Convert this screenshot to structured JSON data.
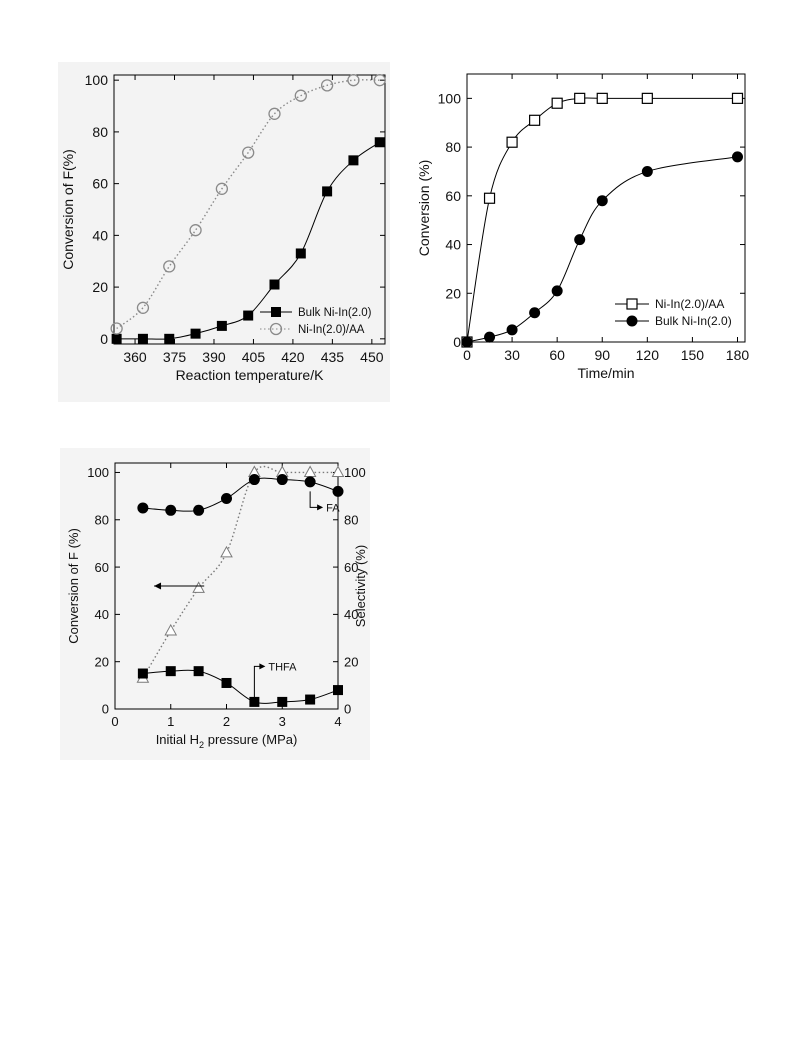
{
  "chart_data": [
    {
      "id": "panel1",
      "type": "line",
      "xlabel": "Reaction temperature/K",
      "ylabel": "Conversion of F(%)",
      "xlim": [
        352,
        455
      ],
      "ylim": [
        -2,
        102
      ],
      "xticks": [
        360,
        375,
        390,
        405,
        420,
        435,
        450
      ],
      "yticks": [
        0,
        20,
        40,
        60,
        80,
        100
      ],
      "legend_position": "bottom-right",
      "series": [
        {
          "name": "Bulk Ni-In(2.0)",
          "marker": "filled-square",
          "line": "solid",
          "x": [
            353,
            363,
            373,
            383,
            393,
            403,
            413,
            423,
            433,
            443,
            453
          ],
          "y": [
            0,
            0,
            0,
            2,
            5,
            9,
            21,
            33,
            57,
            69,
            76
          ]
        },
        {
          "name": "Ni-In(2.0)/AA",
          "marker": "open-circle",
          "line": "dotted",
          "color": "#8a8a8a",
          "x": [
            353,
            363,
            373,
            383,
            393,
            403,
            413,
            423,
            433,
            443,
            453
          ],
          "y": [
            4,
            12,
            28,
            42,
            58,
            72,
            87,
            94,
            98,
            100,
            100
          ]
        }
      ]
    },
    {
      "id": "panel2",
      "type": "line",
      "xlabel": "Time/min",
      "ylabel": "Conversion (%)",
      "xlim": [
        0,
        185
      ],
      "ylim": [
        0,
        110
      ],
      "xticks": [
        0,
        30,
        60,
        90,
        120,
        150,
        180
      ],
      "yticks": [
        0,
        20,
        40,
        60,
        80,
        100
      ],
      "legend_position": "bottom-right",
      "series": [
        {
          "name": "Ni-In(2.0)/AA",
          "marker": "open-square",
          "line": "solid",
          "x": [
            0,
            15,
            30,
            45,
            60,
            75,
            90,
            120,
            180
          ],
          "y": [
            0,
            59,
            82,
            91,
            98,
            100,
            100,
            100,
            100
          ]
        },
        {
          "name": "Bulk Ni-In(2.0)",
          "marker": "filled-circle",
          "line": "solid",
          "x": [
            0,
            15,
            30,
            45,
            60,
            75,
            90,
            120,
            180
          ],
          "y": [
            0,
            2,
            5,
            12,
            21,
            42,
            58,
            70,
            76
          ]
        }
      ]
    },
    {
      "id": "panel3",
      "type": "line",
      "xlabel": "Initial H2 pressure (MPa)",
      "xlabel_parts": [
        "Initial H",
        "2",
        " pressure (MPa)"
      ],
      "ylabel": "Conversion of F (%)",
      "ylabel_right": "Selectivity (%)",
      "xlim": [
        0,
        4
      ],
      "ylim": [
        0,
        104
      ],
      "ylim_right": [
        0,
        104
      ],
      "xticks": [
        0,
        1,
        2,
        3,
        4
      ],
      "yticks": [
        0,
        20,
        40,
        60,
        80,
        100
      ],
      "yticks_right": [
        0,
        20,
        40,
        60,
        80,
        100
      ],
      "series": [
        {
          "name": "",
          "marker": "open-triangle",
          "line": "dotted",
          "color": "#7a7a7a",
          "axis": "left",
          "x": [
            0.5,
            1,
            1.5,
            2,
            2.5,
            3,
            3.5,
            4
          ],
          "y": [
            13,
            33,
            51,
            66,
            100,
            100,
            100,
            100
          ]
        },
        {
          "name": "",
          "marker": "filled-circle",
          "line": "solid",
          "axis": "right",
          "x": [
            0.5,
            1,
            1.5,
            2,
            2.5,
            3,
            3.5,
            4
          ],
          "y": [
            85,
            84,
            84,
            89,
            97,
            97,
            96,
            92
          ]
        },
        {
          "name": "",
          "marker": "filled-square",
          "line": "solid",
          "axis": "right",
          "x": [
            0.5,
            1,
            1.5,
            2,
            2.5,
            3,
            3.5,
            4
          ],
          "y": [
            15,
            16,
            16,
            11,
            3,
            3,
            4,
            8
          ]
        }
      ],
      "annotations": [
        {
          "text": "FA"
        },
        {
          "text": "THFA"
        }
      ]
    }
  ]
}
